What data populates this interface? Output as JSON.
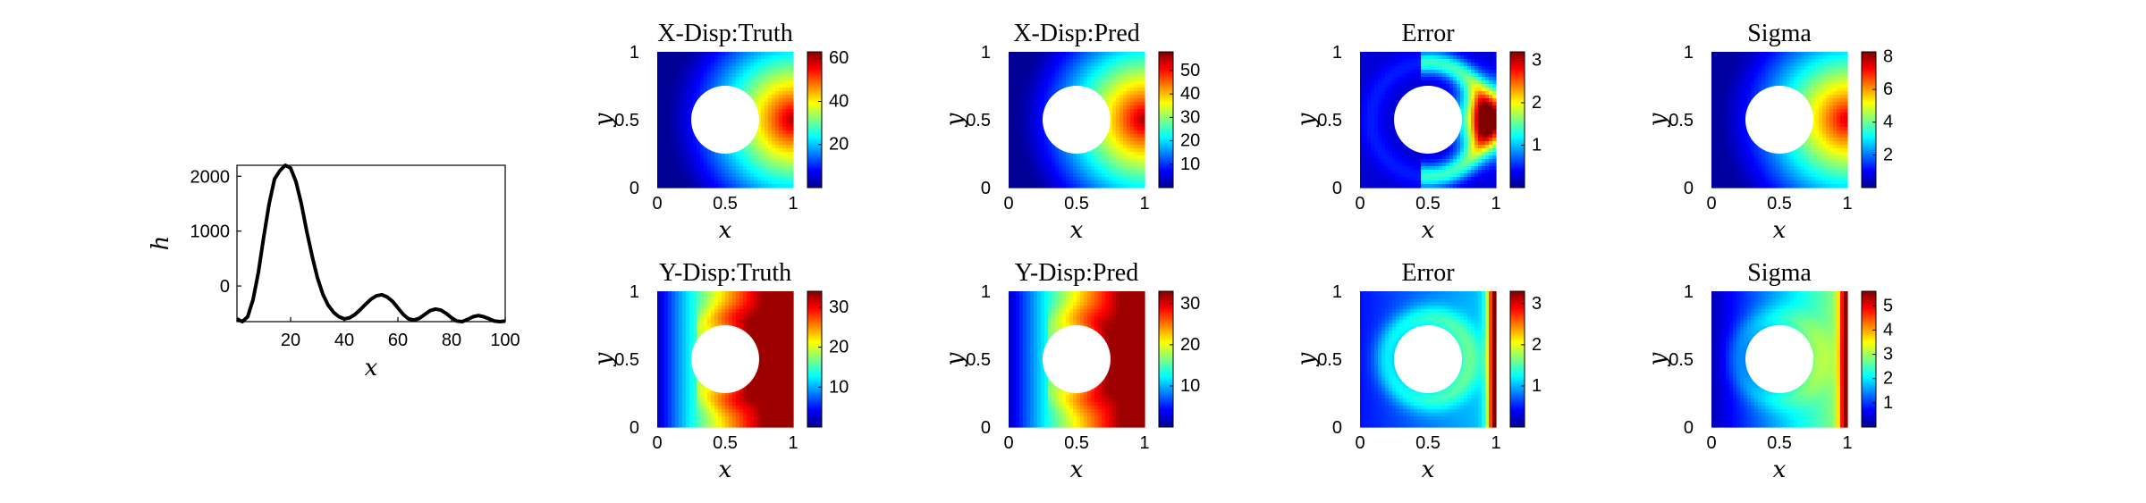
{
  "chart_data": [
    {
      "type": "line",
      "xlabel": "x",
      "ylabel": "h",
      "xlim": [
        0,
        100
      ],
      "ylim": [
        -650,
        2200
      ],
      "xticks": [
        "20",
        "40",
        "60",
        "80",
        "100"
      ],
      "yticks": [
        "0",
        "1000",
        "2000"
      ],
      "grid": false,
      "series": [
        {
          "x": [
            0,
            2,
            4,
            6,
            8,
            10,
            12,
            14,
            16,
            18,
            20,
            22,
            24,
            26,
            28,
            30,
            32,
            34,
            36,
            38,
            40,
            42,
            44,
            46,
            48,
            50,
            52,
            54,
            56,
            58,
            60,
            62,
            64,
            66,
            68,
            70,
            72,
            74,
            76,
            78,
            80,
            82,
            84,
            86,
            88,
            90,
            92,
            94,
            96,
            98,
            100
          ],
          "y": [
            -600,
            -650,
            -560,
            -250,
            250,
            900,
            1500,
            1950,
            2100,
            2200,
            2150,
            1900,
            1500,
            1000,
            550,
            150,
            -150,
            -350,
            -480,
            -560,
            -600,
            -580,
            -520,
            -430,
            -330,
            -240,
            -180,
            -160,
            -200,
            -280,
            -400,
            -520,
            -600,
            -620,
            -590,
            -520,
            -450,
            -420,
            -440,
            -500,
            -580,
            -640,
            -650,
            -610,
            -560,
            -540,
            -560,
            -600,
            -640,
            -650,
            -640
          ]
        }
      ]
    },
    {
      "type": "heatmap",
      "title": "X-Disp:Truth",
      "xlabel": "x",
      "ylabel": "y",
      "xlim": [
        0,
        1
      ],
      "ylim": [
        0,
        1
      ],
      "xticks": [
        "0",
        "0.5",
        "1"
      ],
      "yticks": [
        "0",
        "0.5",
        "1"
      ],
      "colorbar_range": [
        0,
        63
      ],
      "colorbar_ticks": [
        20,
        40,
        60
      ],
      "colormap": "jet",
      "hole": {
        "center": [
          0.5,
          0.5
        ],
        "radius": 0.25
      }
    },
    {
      "type": "heatmap",
      "title": "X-Disp:Pred",
      "xlabel": "x",
      "ylabel": "y",
      "xlim": [
        0,
        1
      ],
      "ylim": [
        0,
        1
      ],
      "xticks": [
        "0",
        "0.5",
        "1"
      ],
      "yticks": [
        "0",
        "0.5",
        "1"
      ],
      "colorbar_range": [
        0,
        58
      ],
      "colorbar_ticks": [
        10,
        20,
        30,
        40,
        50
      ],
      "colormap": "jet",
      "hole": {
        "center": [
          0.5,
          0.5
        ],
        "radius": 0.25
      }
    },
    {
      "type": "heatmap",
      "title": "Error",
      "xlabel": "x",
      "ylabel": "y",
      "xlim": [
        0,
        1
      ],
      "ylim": [
        0,
        1
      ],
      "xticks": [
        "0",
        "0.5",
        "1"
      ],
      "yticks": [
        "0",
        "0.5",
        "1"
      ],
      "colorbar_range": [
        0,
        3.2
      ],
      "colorbar_ticks": [
        1,
        2,
        3
      ],
      "colormap": "jet",
      "hole": {
        "center": [
          0.5,
          0.5
        ],
        "radius": 0.25
      }
    },
    {
      "type": "heatmap",
      "title": "Sigma",
      "xlabel": "x",
      "ylabel": "y",
      "xlim": [
        0,
        1
      ],
      "ylim": [
        0,
        1
      ],
      "xticks": [
        "0",
        "0.5",
        "1"
      ],
      "yticks": [
        "0",
        "0.5",
        "1"
      ],
      "colorbar_range": [
        0,
        8.3
      ],
      "colorbar_ticks": [
        2,
        4,
        6,
        8
      ],
      "colormap": "jet",
      "hole": {
        "center": [
          0.5,
          0.5
        ],
        "radius": 0.25
      }
    },
    {
      "type": "heatmap",
      "title": "Y-Disp:Truth",
      "xlabel": "x",
      "ylabel": "y",
      "xlim": [
        0,
        1
      ],
      "ylim": [
        0,
        1
      ],
      "xticks": [
        "0",
        "0.5",
        "1"
      ],
      "yticks": [
        "0",
        "0.5",
        "1"
      ],
      "colorbar_range": [
        0,
        34
      ],
      "colorbar_ticks": [
        10,
        20,
        30
      ],
      "colormap": "jet",
      "hole": {
        "center": [
          0.5,
          0.5
        ],
        "radius": 0.25
      }
    },
    {
      "type": "heatmap",
      "title": "Y-Disp:Pred",
      "xlabel": "x",
      "ylabel": "y",
      "xlim": [
        0,
        1
      ],
      "ylim": [
        0,
        1
      ],
      "xticks": [
        "0",
        "0.5",
        "1"
      ],
      "yticks": [
        "0",
        "0.5",
        "1"
      ],
      "colorbar_range": [
        0,
        33
      ],
      "colorbar_ticks": [
        10,
        20,
        30
      ],
      "colormap": "jet",
      "hole": {
        "center": [
          0.5,
          0.5
        ],
        "radius": 0.25
      }
    },
    {
      "type": "heatmap",
      "title": "Error",
      "xlabel": "x",
      "ylabel": "y",
      "xlim": [
        0,
        1
      ],
      "ylim": [
        0,
        1
      ],
      "xticks": [
        "0",
        "0.5",
        "1"
      ],
      "yticks": [
        "0",
        "0.5",
        "1"
      ],
      "colorbar_range": [
        0,
        3.3
      ],
      "colorbar_ticks": [
        1,
        2,
        3
      ],
      "colormap": "jet",
      "hole": {
        "center": [
          0.5,
          0.5
        ],
        "radius": 0.25
      }
    },
    {
      "type": "heatmap",
      "title": "Sigma",
      "xlabel": "x",
      "ylabel": "y",
      "xlim": [
        0,
        1
      ],
      "ylim": [
        0,
        1
      ],
      "xticks": [
        "0",
        "0.5",
        "1"
      ],
      "yticks": [
        "0",
        "0.5",
        "1"
      ],
      "colorbar_range": [
        0,
        5.6
      ],
      "colorbar_ticks": [
        1,
        2,
        3,
        4,
        5
      ],
      "colormap": "jet",
      "hole": {
        "center": [
          0.5,
          0.5
        ],
        "radius": 0.25
      }
    }
  ]
}
